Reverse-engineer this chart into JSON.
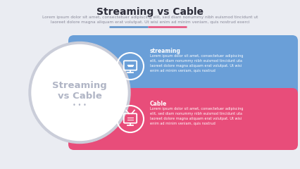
{
  "title": "Streaming vs Cable",
  "subtitle_line1": "Lorem ipsum dolor sit amet, consectetuer adipiscing elit, sed diam nonummy nibh euismod tincidunt ut",
  "subtitle_line2": "laoreet dolore magna aliquam erat volutpat. Ut wisi enim ad minim veniam, quis nostrud exerci",
  "circle_text_line1": "Streaming",
  "circle_text_line2": "vs Cable",
  "circle_dots": "• • •",
  "bg_color": "#eaecf2",
  "circle_bg": "#ffffff",
  "circle_border": "#cacdd9",
  "circle_text_color": "#b0b5c5",
  "streaming_color": "#6a9fd8",
  "cable_color": "#e84d7a",
  "item1_title": "streaming",
  "item1_body": "Lorem ipsum dolor sit amet, consectetuer adipiscing\nelit, sed diam nonummy nibh euismod tincidunt uta\nlaoreet dolore magna aliquam erat volutpat. Ut wisi\nenim ad minim veniam, quis nostrud",
  "item2_title": "Cable",
  "item2_body": "Lorem ipsum dolor sit amet, consectetuer adipiscing\nelit, sed diam nonummy nibh euismod tincidunt uta\nlaoreet dolore magna aliquam erat volutpat. Ut wisi\nenim ad minim veniam, quis nostrud",
  "separator_blue": "#5b8fc9",
  "separator_pink": "#e84d7a",
  "title_color": "#2d2d3a",
  "subtitle_color": "#8a8a9a",
  "white": "#ffffff"
}
